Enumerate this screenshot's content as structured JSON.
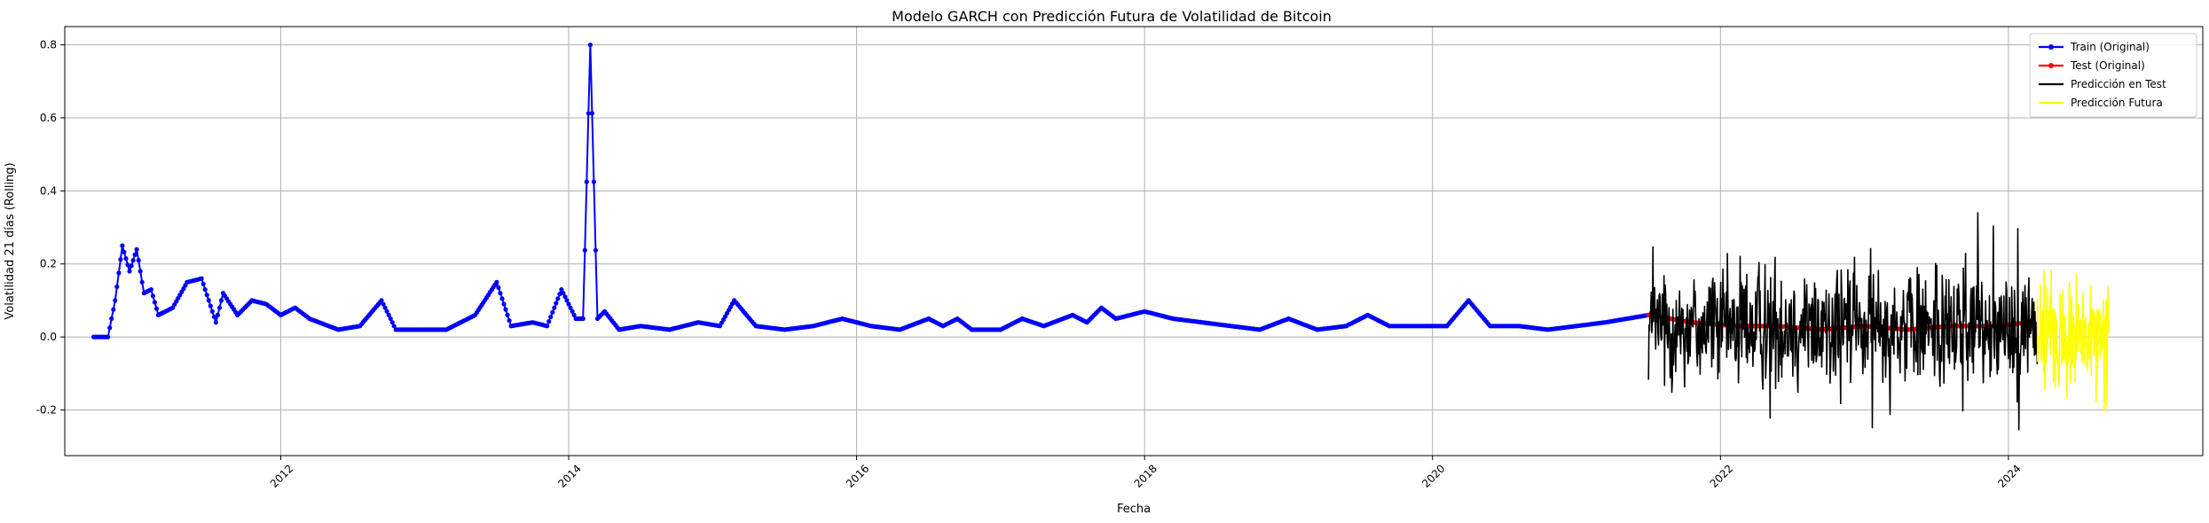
{
  "chart_data": {
    "type": "line",
    "title": "Modelo GARCH con Predicción Futura de Volatilidad de Bitcoin",
    "xlabel": "Fecha",
    "ylabel": "Volatilidad 21 días (Rolling)",
    "xlim": [
      2010.5,
      2025.35
    ],
    "ylim": [
      -0.325,
      0.85
    ],
    "x_ticks": [
      2012,
      2014,
      2016,
      2018,
      2020,
      2022,
      2024
    ],
    "y_ticks": [
      -0.2,
      0.0,
      0.2,
      0.4,
      0.6,
      0.8
    ],
    "grid": true,
    "legend_position": "top-right",
    "series": [
      {
        "name": "Train (Original)",
        "color": "#0000ff",
        "style": "line-with-dot-markers",
        "x": [
          2010.7,
          2010.8,
          2010.85,
          2010.9,
          2010.95,
          2011.0,
          2011.05,
          2011.1,
          2011.15,
          2011.25,
          2011.35,
          2011.45,
          2011.55,
          2011.6,
          2011.7,
          2011.8,
          2011.9,
          2012.0,
          2012.1,
          2012.2,
          2012.4,
          2012.55,
          2012.7,
          2012.8,
          2013.0,
          2013.15,
          2013.35,
          2013.5,
          2013.6,
          2013.75,
          2013.85,
          2013.95,
          2014.05,
          2014.1,
          2014.15,
          2014.2,
          2014.25,
          2014.35,
          2014.5,
          2014.7,
          2014.9,
          2015.05,
          2015.15,
          2015.3,
          2015.5,
          2015.7,
          2015.9,
          2016.1,
          2016.3,
          2016.5,
          2016.6,
          2016.7,
          2016.8,
          2017.0,
          2017.15,
          2017.3,
          2017.5,
          2017.6,
          2017.7,
          2017.8,
          2018.0,
          2018.2,
          2018.4,
          2018.6,
          2018.8,
          2019.0,
          2019.2,
          2019.4,
          2019.55,
          2019.7,
          2019.9,
          2020.1,
          2020.25,
          2020.4,
          2020.6,
          2020.8,
          2021.0,
          2021.2,
          2021.35,
          2021.5
        ],
        "y": [
          0.0,
          0.0,
          0.1,
          0.25,
          0.18,
          0.24,
          0.12,
          0.13,
          0.06,
          0.08,
          0.15,
          0.16,
          0.04,
          0.12,
          0.06,
          0.1,
          0.09,
          0.06,
          0.08,
          0.05,
          0.02,
          0.03,
          0.1,
          0.02,
          0.02,
          0.02,
          0.06,
          0.15,
          0.03,
          0.04,
          0.03,
          0.13,
          0.05,
          0.05,
          0.8,
          0.05,
          0.07,
          0.02,
          0.03,
          0.02,
          0.04,
          0.03,
          0.1,
          0.03,
          0.02,
          0.03,
          0.05,
          0.03,
          0.02,
          0.05,
          0.03,
          0.05,
          0.02,
          0.02,
          0.05,
          0.03,
          0.06,
          0.04,
          0.08,
          0.05,
          0.07,
          0.05,
          0.04,
          0.03,
          0.02,
          0.05,
          0.02,
          0.03,
          0.06,
          0.03,
          0.03,
          0.03,
          0.1,
          0.03,
          0.03,
          0.02,
          0.03,
          0.04,
          0.05,
          0.06
        ]
      },
      {
        "name": "Test (Original)",
        "color": "#ff0000",
        "style": "line-with-dot-markers",
        "x": [
          2021.5,
          2021.8,
          2022.1,
          2022.4,
          2022.7,
          2023.0,
          2023.3,
          2023.6,
          2023.9,
          2024.15
        ],
        "y": [
          0.06,
          0.04,
          0.03,
          0.03,
          0.02,
          0.03,
          0.02,
          0.03,
          0.03,
          0.04
        ]
      },
      {
        "name": "Predicción en Test",
        "color": "#000000",
        "style": "line",
        "x_range": [
          2021.5,
          2024.2
        ],
        "y_range": [
          -0.26,
          0.39
        ]
      },
      {
        "name": "Predicción Futura",
        "color": "#ffff00",
        "style": "line",
        "x_range": [
          2024.2,
          2024.7
        ],
        "y_range": [
          -0.27,
          0.23
        ]
      }
    ]
  }
}
